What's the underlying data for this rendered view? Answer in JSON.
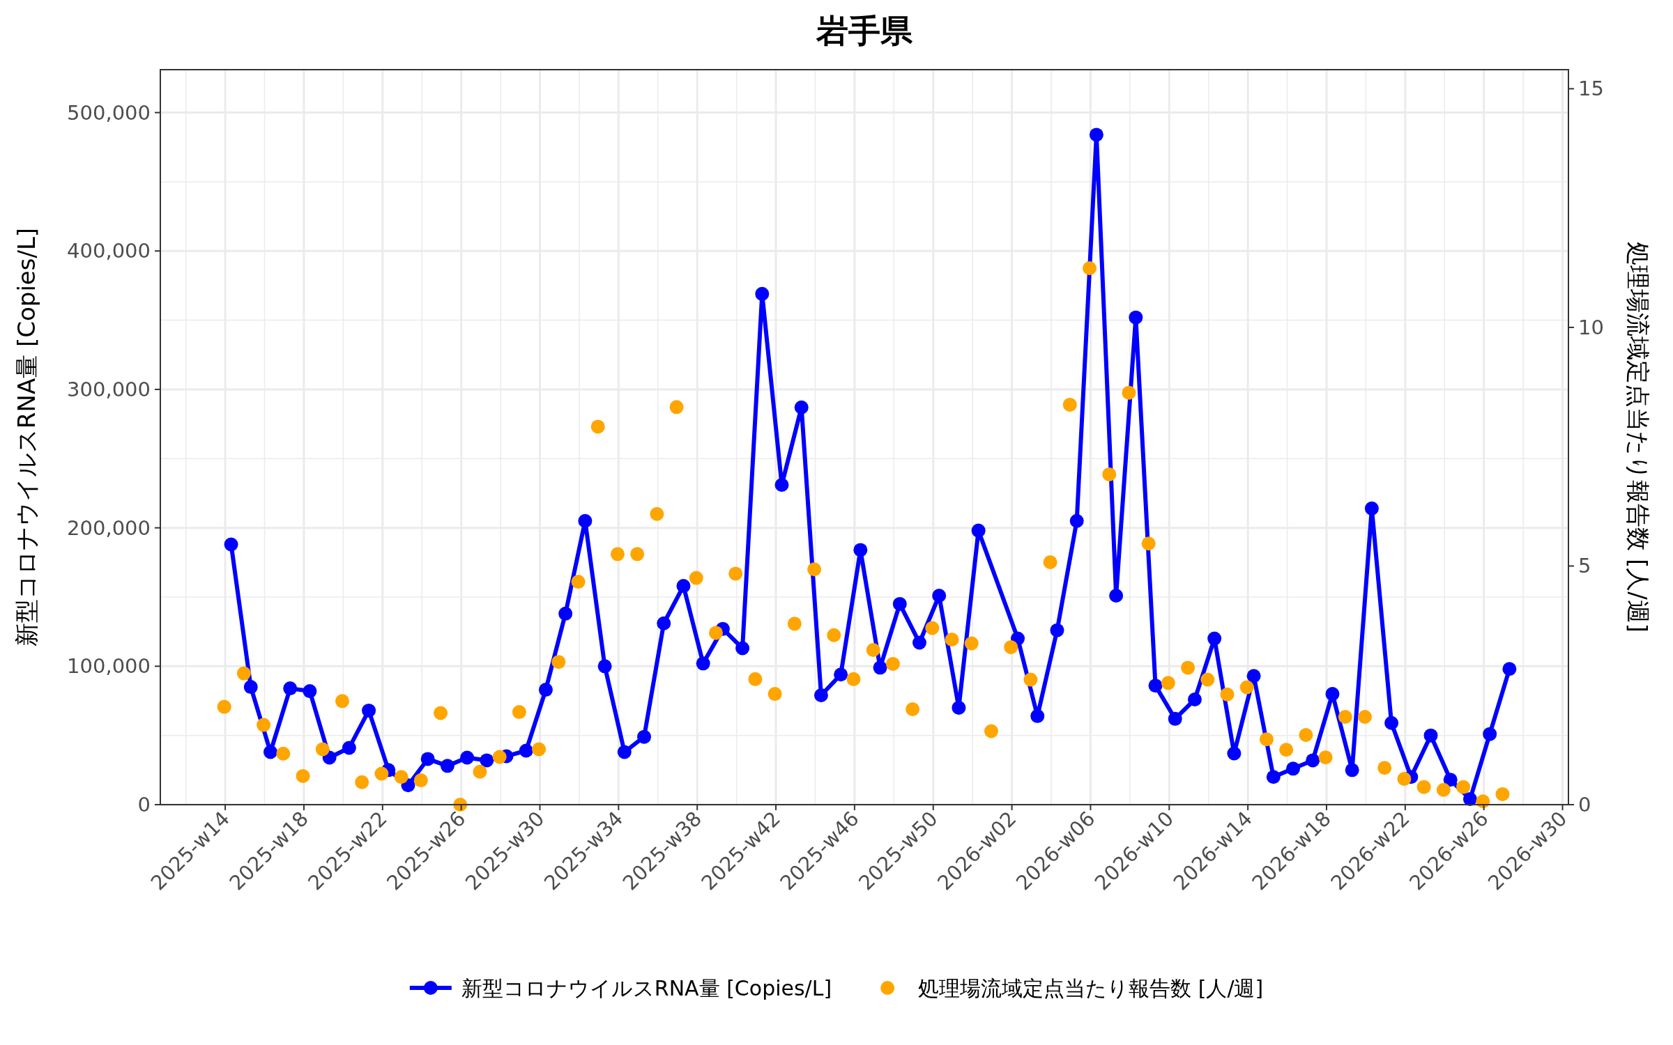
{
  "chart_data": {
    "type": "line",
    "title": "岩手県",
    "ylabel": "新型コロナウイルスRNA量 [Copies/L]",
    "y2label": "処理場流域定点当たり報告数 [人/週]",
    "categories": [
      "2025-w14",
      null,
      null,
      null,
      "2025-w18",
      null,
      null,
      null,
      "2025-w22",
      null,
      null,
      null,
      "2025-w26",
      null,
      null,
      null,
      "2025-w30",
      null,
      null,
      null,
      "2025-w34",
      null,
      null,
      null,
      "2025-w38",
      null,
      null,
      null,
      "2025-w42",
      null,
      null,
      null,
      "2025-w46",
      null,
      null,
      null,
      "2025-w50",
      null,
      null,
      null,
      "2026-w02",
      null,
      null,
      null,
      "2026-w06",
      null,
      null,
      null,
      "2026-w10",
      null,
      null,
      null,
      "2026-w14",
      null,
      null,
      null,
      "2026-w18",
      null,
      null,
      null,
      "2026-w22",
      null,
      null,
      null,
      "2026-w26",
      null,
      null,
      null,
      "2026-w30"
    ],
    "ylim": [
      0,
      531000
    ],
    "yticks": [
      0,
      {
        "value": 100000,
        "label": "100,000"
      },
      {
        "value": 200000,
        "label": "200,000"
      },
      {
        "value": 300000,
        "label": "300,000"
      },
      {
        "value": 400000,
        "label": "400,000"
      },
      {
        "value": 500000,
        "label": "500,000"
      }
    ],
    "y2lim": [
      0,
      15.4
    ],
    "y2ticks": [
      0,
      5,
      10,
      15
    ],
    "grid": true,
    "legend": "bottom",
    "marker": "circle",
    "series": [
      {
        "name": "新型コロナウイルスRNA量 [Copies/L]",
        "color": "#0000ff",
        "values": [
          188000,
          85000,
          38000,
          84000,
          82000,
          34000,
          41000,
          68000,
          25000,
          14000,
          33000,
          28000,
          34000,
          32000,
          35000,
          39000,
          83000,
          138000,
          205000,
          100000,
          38000,
          49000,
          131000,
          158000,
          102000,
          127000,
          113000,
          369000,
          231000,
          287000,
          79000,
          94000,
          184000,
          99000,
          145000,
          117000,
          151000,
          70000,
          198000,
          null,
          120000,
          64000,
          126000,
          205000,
          484000,
          151000,
          352000,
          86000,
          62000,
          76000,
          120000,
          37000,
          93000,
          20000,
          26000,
          32000,
          80000,
          25000,
          214000,
          59000,
          20000,
          50000,
          18000,
          4000,
          51000,
          98000,
          null,
          null,
          null
        ]
      },
      {
        "name": "処理場流域定点当たり報告数 [人/週]",
        "type": "scatter",
        "axis": "y2",
        "color": "#ffa500",
        "values": [
          2.05,
          2.75,
          1.67,
          1.07,
          0.6,
          1.16,
          2.17,
          0.47,
          0.65,
          0.58,
          0.51,
          1.92,
          0,
          0.69,
          1.0,
          1.94,
          1.16,
          2.99,
          4.67,
          7.92,
          5.25,
          5.25,
          6.09,
          8.33,
          4.75,
          3.6,
          4.84,
          2.63,
          2.32,
          3.79,
          4.93,
          3.55,
          2.63,
          3.24,
          2.95,
          2.0,
          3.7,
          3.46,
          3.38,
          1.54,
          3.3,
          2.62,
          5.08,
          8.38,
          11.24,
          6.92,
          8.63,
          5.47,
          2.55,
          2.87,
          2.62,
          2.31,
          2.46,
          1.37,
          1.15,
          1.46,
          0.99,
          1.84,
          1.84,
          0.77,
          0.54,
          0.37,
          0.31,
          0.37,
          0.07,
          0.22,
          null,
          null,
          null
        ]
      }
    ]
  }
}
